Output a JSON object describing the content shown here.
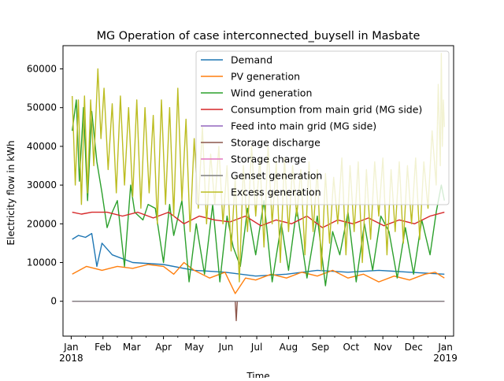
{
  "chart_data": {
    "type": "line",
    "title": "MG Operation of case interconnected_buysell in Masbate",
    "xlabel": "Time",
    "ylabel": "Electricity flow in kWh",
    "xlim": [
      "2018-01-01",
      "2019-01-01"
    ],
    "ylim": [
      -9000,
      66000
    ],
    "yticks": [
      0,
      10000,
      20000,
      30000,
      40000,
      50000,
      60000
    ],
    "xticks": [
      "Jan\n2018",
      "Feb",
      "Mar",
      "Apr",
      "May",
      "Jun",
      "Jul",
      "Aug",
      "Sep",
      "Oct",
      "Nov",
      "Dec",
      "Jan\n2019"
    ],
    "grid": false,
    "legend_loc": "upper right",
    "series": [
      {
        "name": "Demand",
        "color": "#1f77b4",
        "values": [
          [
            1,
            16000
          ],
          [
            7,
            17000
          ],
          [
            14,
            16500
          ],
          [
            20,
            17500
          ],
          [
            25,
            9000
          ],
          [
            30,
            15000
          ],
          [
            40,
            12000
          ],
          [
            60,
            10000
          ],
          [
            90,
            9500
          ],
          [
            120,
            8000
          ],
          [
            150,
            7500
          ],
          [
            180,
            6500
          ],
          [
            210,
            7000
          ],
          [
            240,
            8000
          ],
          [
            270,
            7500
          ],
          [
            300,
            8000
          ],
          [
            330,
            7500
          ],
          [
            364,
            7000
          ]
        ]
      },
      {
        "name": "PV generation",
        "color": "#ff7f0e",
        "values": [
          [
            1,
            7000
          ],
          [
            15,
            9000
          ],
          [
            30,
            8000
          ],
          [
            45,
            9000
          ],
          [
            60,
            8500
          ],
          [
            75,
            9500
          ],
          [
            90,
            9000
          ],
          [
            100,
            7000
          ],
          [
            110,
            10000
          ],
          [
            120,
            8000
          ],
          [
            135,
            6000
          ],
          [
            150,
            7500
          ],
          [
            160,
            2000
          ],
          [
            170,
            6000
          ],
          [
            180,
            5500
          ],
          [
            195,
            7000
          ],
          [
            210,
            6000
          ],
          [
            225,
            7500
          ],
          [
            240,
            6500
          ],
          [
            255,
            8000
          ],
          [
            270,
            6000
          ],
          [
            285,
            7000
          ],
          [
            300,
            5000
          ],
          [
            315,
            6500
          ],
          [
            330,
            5500
          ],
          [
            345,
            7000
          ],
          [
            355,
            7500
          ],
          [
            364,
            6000
          ]
        ]
      },
      {
        "name": "Wind generation",
        "color": "#2ca02c",
        "values": [
          [
            1,
            44000
          ],
          [
            5,
            52000
          ],
          [
            8,
            31000
          ],
          [
            12,
            50000
          ],
          [
            16,
            26000
          ],
          [
            20,
            49000
          ],
          [
            25,
            36000
          ],
          [
            30,
            28000
          ],
          [
            35,
            19000
          ],
          [
            40,
            23000
          ],
          [
            45,
            26000
          ],
          [
            52,
            9000
          ],
          [
            58,
            30000
          ],
          [
            62,
            23000
          ],
          [
            70,
            21000
          ],
          [
            75,
            25000
          ],
          [
            82,
            24000
          ],
          [
            90,
            10000
          ],
          [
            96,
            25000
          ],
          [
            100,
            17000
          ],
          [
            108,
            26000
          ],
          [
            115,
            5000
          ],
          [
            122,
            20000
          ],
          [
            130,
            7000
          ],
          [
            138,
            25000
          ],
          [
            145,
            5000
          ],
          [
            152,
            22000
          ],
          [
            158,
            14000
          ],
          [
            165,
            9000
          ],
          [
            172,
            24000
          ],
          [
            180,
            12000
          ],
          [
            188,
            26000
          ],
          [
            196,
            5000
          ],
          [
            205,
            20000
          ],
          [
            212,
            8000
          ],
          [
            220,
            24000
          ],
          [
            230,
            6000
          ],
          [
            240,
            22000
          ],
          [
            248,
            4000
          ],
          [
            255,
            18000
          ],
          [
            262,
            12000
          ],
          [
            270,
            23000
          ],
          [
            278,
            5000
          ],
          [
            286,
            20000
          ],
          [
            294,
            8000
          ],
          [
            302,
            22000
          ],
          [
            310,
            18000
          ],
          [
            318,
            6000
          ],
          [
            326,
            19000
          ],
          [
            334,
            7000
          ],
          [
            342,
            21000
          ],
          [
            350,
            12000
          ],
          [
            356,
            23000
          ],
          [
            361,
            30000
          ],
          [
            364,
            26000
          ]
        ]
      },
      {
        "name": "Consumption from main grid (MG side)",
        "color": "#d62728",
        "values": [
          [
            1,
            23000
          ],
          [
            10,
            22500
          ],
          [
            20,
            23000
          ],
          [
            35,
            23000
          ],
          [
            50,
            22000
          ],
          [
            65,
            23000
          ],
          [
            80,
            21500
          ],
          [
            95,
            23000
          ],
          [
            110,
            20000
          ],
          [
            125,
            22000
          ],
          [
            140,
            21000
          ],
          [
            155,
            20500
          ],
          [
            170,
            22000
          ],
          [
            185,
            19500
          ],
          [
            200,
            21000
          ],
          [
            215,
            20000
          ],
          [
            230,
            22000
          ],
          [
            245,
            19000
          ],
          [
            260,
            21000
          ],
          [
            275,
            20000
          ],
          [
            290,
            21500
          ],
          [
            305,
            19500
          ],
          [
            320,
            21000
          ],
          [
            335,
            20000
          ],
          [
            350,
            22000
          ],
          [
            364,
            23000
          ]
        ]
      },
      {
        "name": "Feed into main grid (MG side)",
        "color": "#9467bd",
        "values": [
          [
            1,
            0
          ],
          [
            364,
            0
          ]
        ]
      },
      {
        "name": "Storage discharge",
        "color": "#8c564b",
        "values": [
          [
            1,
            0
          ],
          [
            160,
            0
          ],
          [
            161,
            -5000
          ],
          [
            162,
            0
          ],
          [
            364,
            0
          ]
        ]
      },
      {
        "name": "Storage charge",
        "color": "#e377c2",
        "values": [
          [
            1,
            0
          ],
          [
            364,
            0
          ]
        ]
      },
      {
        "name": "Genset generation",
        "color": "#7f7f7f",
        "values": [
          [
            1,
            0
          ],
          [
            364,
            0
          ]
        ]
      },
      {
        "name": "Excess generation",
        "color": "#bcbd22",
        "values": [
          [
            1,
            53000
          ],
          [
            4,
            30000
          ],
          [
            7,
            52000
          ],
          [
            10,
            25000
          ],
          [
            13,
            53000
          ],
          [
            16,
            28000
          ],
          [
            19,
            52000
          ],
          [
            22,
            35000
          ],
          [
            26,
            60000
          ],
          [
            29,
            42000
          ],
          [
            32,
            55000
          ],
          [
            36,
            34000
          ],
          [
            40,
            51000
          ],
          [
            44,
            28000
          ],
          [
            48,
            53000
          ],
          [
            52,
            30000
          ],
          [
            56,
            50000
          ],
          [
            60,
            27000
          ],
          [
            64,
            52000
          ],
          [
            68,
            24000
          ],
          [
            72,
            50000
          ],
          [
            76,
            28000
          ],
          [
            80,
            48000
          ],
          [
            84,
            20000
          ],
          [
            88,
            52000
          ],
          [
            92,
            25000
          ],
          [
            96,
            50000
          ],
          [
            100,
            22000
          ],
          [
            104,
            55000
          ],
          [
            108,
            26000
          ],
          [
            112,
            47000
          ],
          [
            116,
            18000
          ],
          [
            120,
            42000
          ],
          [
            124,
            24000
          ],
          [
            128,
            45000
          ],
          [
            132,
            20000
          ],
          [
            136,
            38000
          ],
          [
            140,
            25000
          ],
          [
            144,
            40000
          ],
          [
            148,
            20000
          ],
          [
            152,
            35000
          ],
          [
            156,
            13000
          ],
          [
            160,
            32000
          ],
          [
            164,
            5000
          ],
          [
            168,
            35000
          ],
          [
            172,
            18000
          ],
          [
            176,
            40000
          ],
          [
            180,
            22000
          ],
          [
            184,
            37000
          ],
          [
            188,
            14000
          ],
          [
            192,
            40000
          ],
          [
            196,
            20000
          ],
          [
            200,
            36000
          ],
          [
            204,
            10000
          ],
          [
            208,
            37000
          ],
          [
            212,
            18000
          ],
          [
            216,
            35000
          ],
          [
            220,
            22000
          ],
          [
            224,
            34000
          ],
          [
            228,
            12000
          ],
          [
            232,
            36000
          ],
          [
            236,
            18000
          ],
          [
            240,
            34000
          ],
          [
            244,
            8000
          ],
          [
            248,
            33000
          ],
          [
            252,
            15000
          ],
          [
            256,
            32000
          ],
          [
            260,
            20000
          ],
          [
            264,
            37000
          ],
          [
            268,
            12000
          ],
          [
            272,
            35000
          ],
          [
            276,
            18000
          ],
          [
            280,
            36000
          ],
          [
            284,
            10000
          ],
          [
            288,
            34000
          ],
          [
            292,
            16000
          ],
          [
            296,
            36000
          ],
          [
            300,
            22000
          ],
          [
            304,
            37000
          ],
          [
            308,
            12000
          ],
          [
            312,
            34000
          ],
          [
            316,
            18000
          ],
          [
            320,
            36000
          ],
          [
            324,
            15000
          ],
          [
            328,
            35000
          ],
          [
            332,
            20000
          ],
          [
            336,
            37000
          ],
          [
            340,
            16000
          ],
          [
            344,
            36000
          ],
          [
            348,
            24000
          ],
          [
            352,
            44000
          ],
          [
            356,
            30000
          ],
          [
            358,
            56000
          ],
          [
            360,
            35000
          ],
          [
            361,
            64000
          ],
          [
            362,
            40000
          ],
          [
            363,
            52000
          ],
          [
            364,
            45000
          ]
        ]
      }
    ]
  }
}
